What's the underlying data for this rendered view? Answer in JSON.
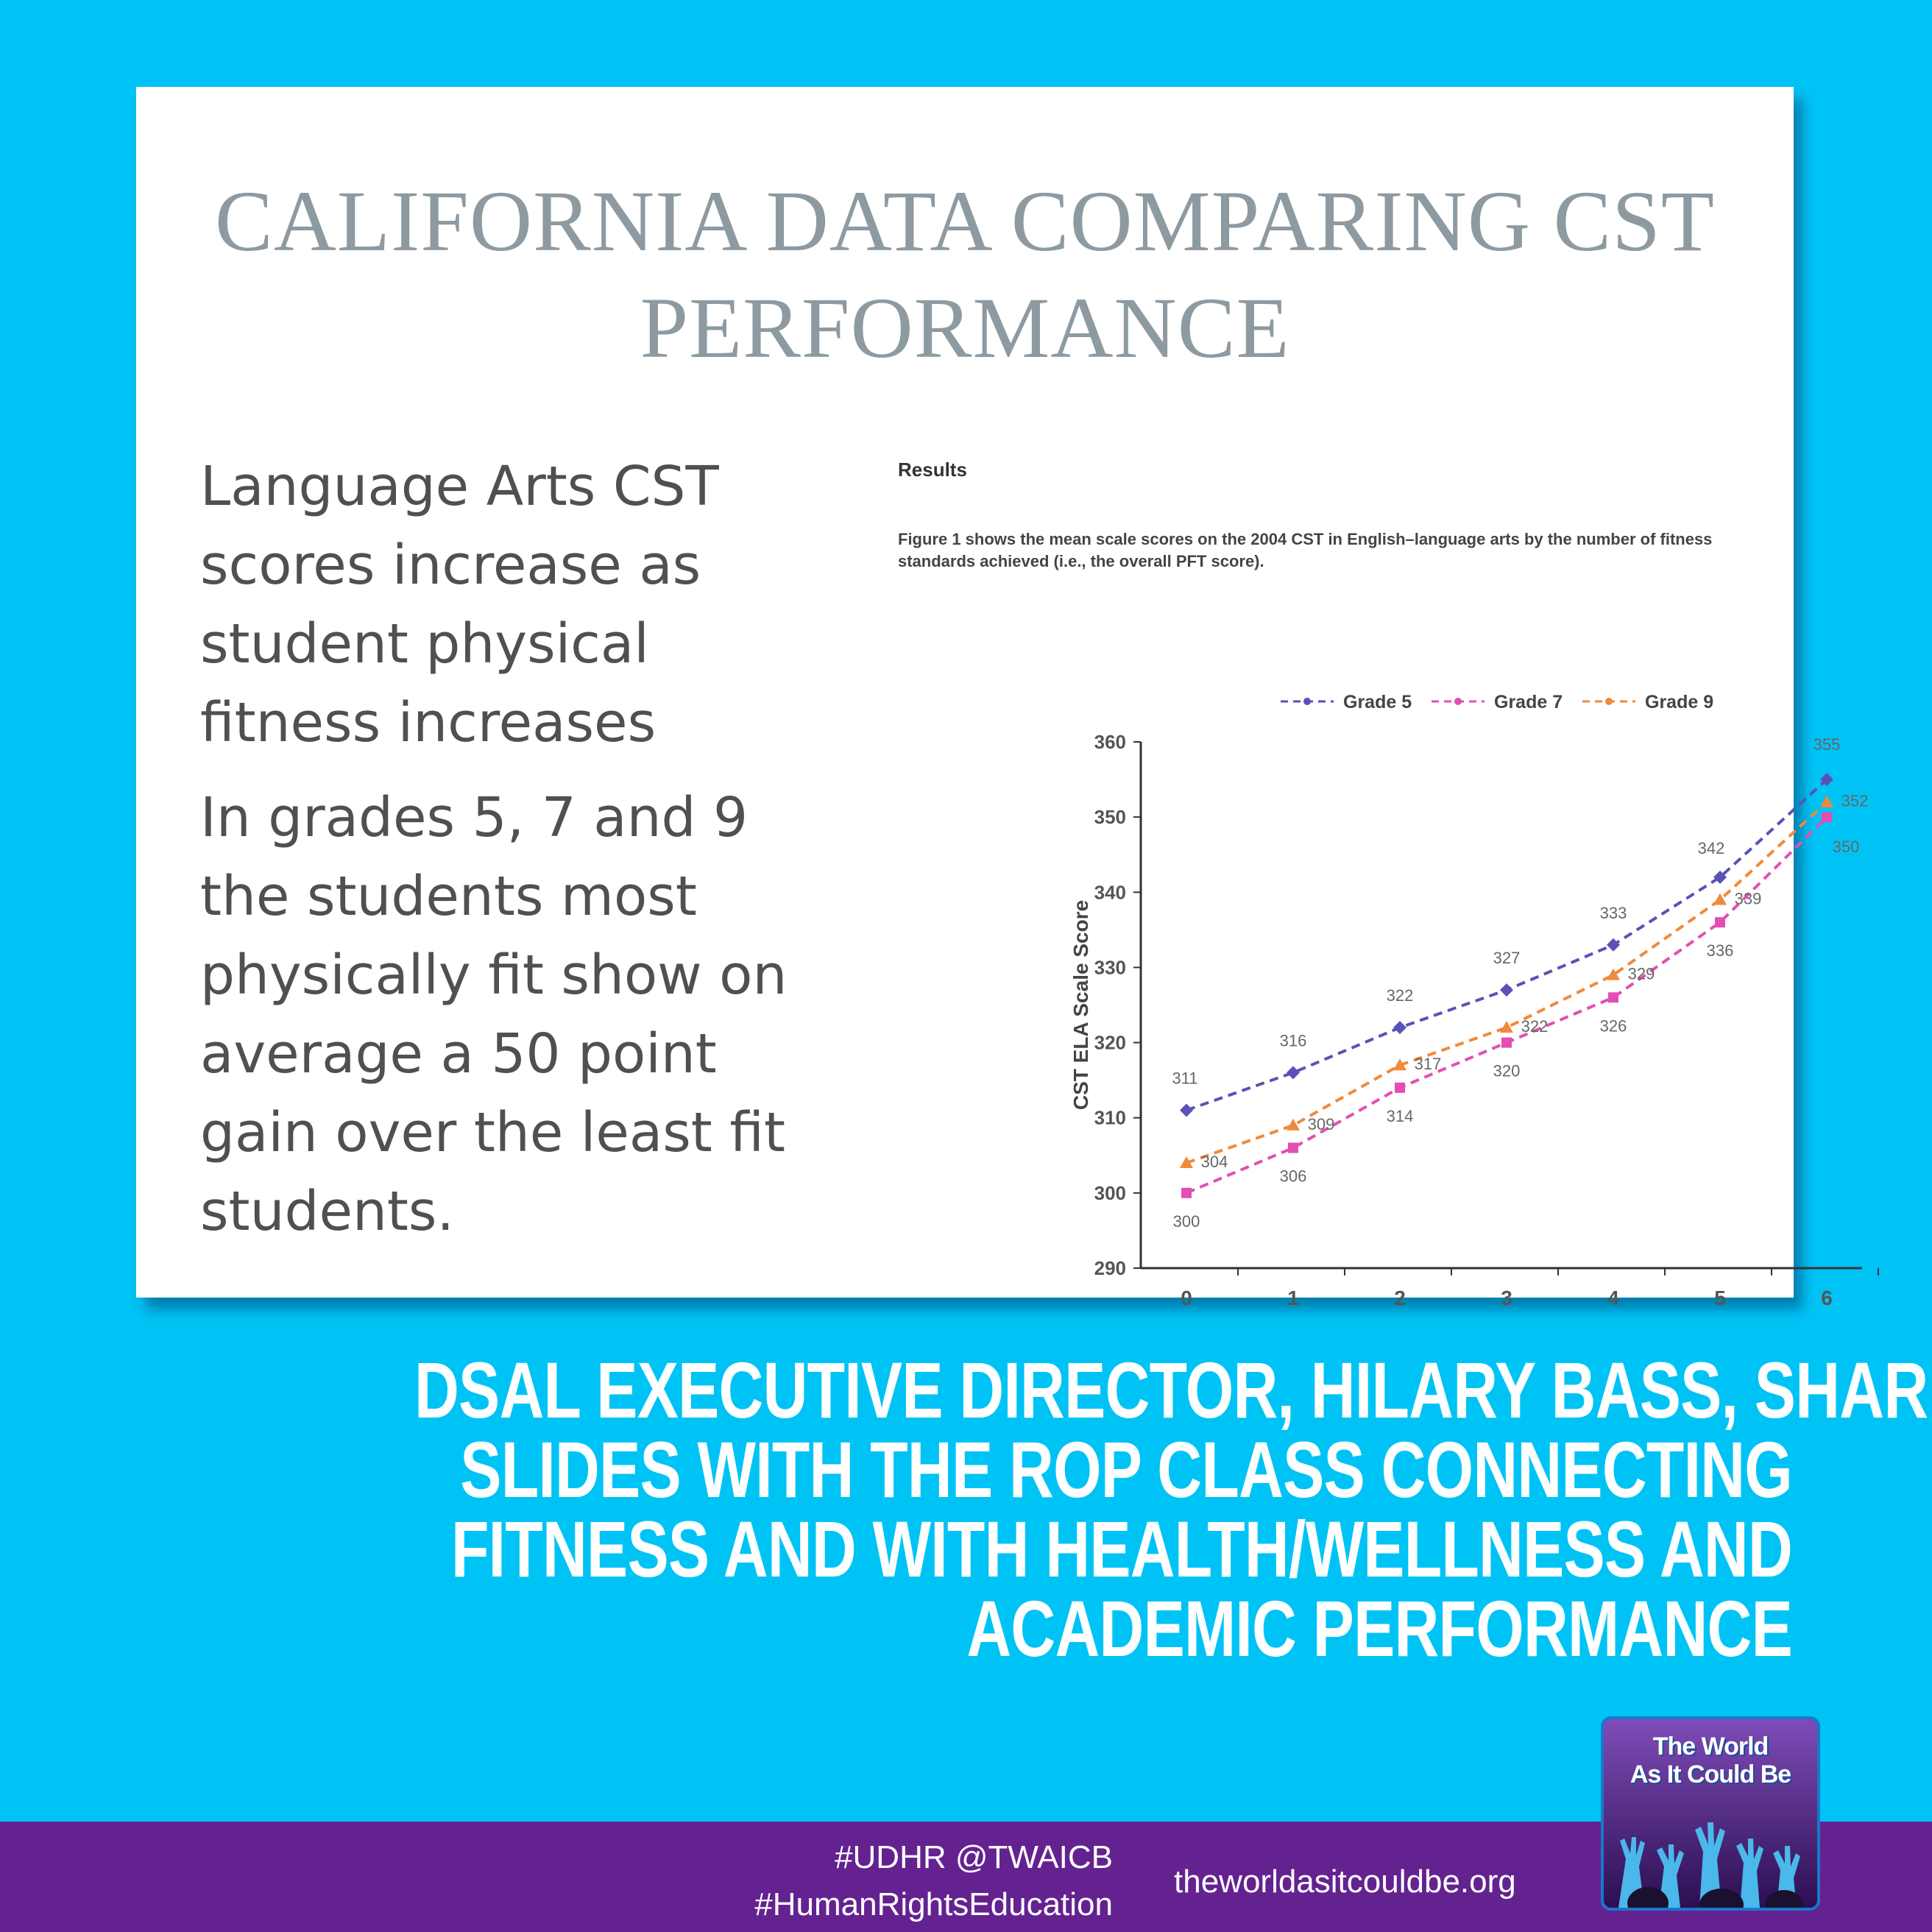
{
  "slide": {
    "title_lines": [
      "CALIFORNIA DATA COMPARING CST",
      "PERFORMANCE"
    ],
    "bullet1": "Language Arts CST scores increase as student physical fitness increases",
    "bullet2": "In grades 5, 7 and 9 the students most physically fit show on average a 50 point gain over the least fit students.",
    "results_heading": "Results",
    "caption": "Figure 1 shows the mean scale scores on the 2004 CST in English–language arts by the number of fitness standards achieved (i.e., the overall PFT score)."
  },
  "chart_data": {
    "type": "line",
    "title": "",
    "xlabel": "",
    "ylabel": "CST ELA Scale Score",
    "x": [
      0,
      1,
      2,
      3,
      4,
      5,
      6
    ],
    "ylim": [
      290,
      360
    ],
    "yticks": [
      290,
      300,
      310,
      320,
      330,
      340,
      350,
      360
    ],
    "legend_position": "top",
    "grid": false,
    "series": [
      {
        "name": "Grade 5",
        "color": "#5a52b8",
        "marker": "diamond",
        "values": [
          311,
          316,
          322,
          327,
          333,
          342,
          355
        ]
      },
      {
        "name": "Grade 7",
        "color": "#e24fb4",
        "marker": "square",
        "values": [
          300,
          306,
          314,
          320,
          326,
          336,
          350
        ]
      },
      {
        "name": "Grade 9",
        "color": "#ef8a3c",
        "marker": "triangle",
        "values": [
          304,
          309,
          317,
          322,
          329,
          339,
          352
        ]
      }
    ]
  },
  "headline_lines": [
    "DSAL EXECUTIVE DIRECTOR, HILARY BASS, SHARED",
    "SLIDES WITH THE ROP CLASS CONNECTING",
    "FITNESS AND WITH HEALTH/WELLNESS AND",
    "ACADEMIC PERFORMANCE"
  ],
  "footer": {
    "hashtags_line1": "#UDHR @TWAICB",
    "hashtags_line2": "#HumanRightsEducation",
    "website": "theworldasitcouldbe.org"
  },
  "logo": {
    "line1": "The World",
    "line2": "As It Could Be",
    "icon": "raised-hands-icon"
  },
  "colors": {
    "background": "#00c3f5",
    "footer": "#642291",
    "headline": "#ffffff"
  }
}
